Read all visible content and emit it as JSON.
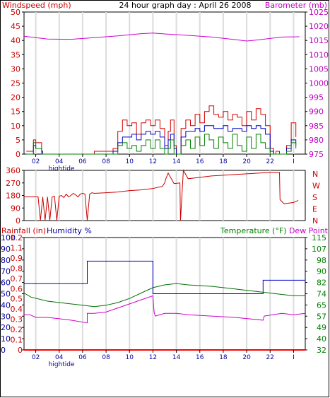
{
  "chart_data": [
    {
      "type": "line",
      "title": "24 hour graph day : April 26 2008",
      "ylabel": "Windspeed (mph)",
      "y2label": "Barometer (mb)",
      "x_ticks": [
        "02",
        "04",
        "06",
        "08",
        "10",
        "12",
        "14",
        "16",
        "18",
        "20",
        "22",
        "I"
      ],
      "x_marker": "hightide",
      "ylim": [
        0,
        50
      ],
      "y_ticks": [
        "0",
        "5",
        "10",
        "15",
        "20",
        "25",
        "30",
        "35",
        "40",
        "45",
        "50"
      ],
      "y2lim": [
        975,
        1025
      ],
      "y2_ticks": [
        "975",
        "980",
        "985",
        "990",
        "995",
        "1000",
        "1005",
        "1010",
        "1015",
        "1020",
        "1025"
      ],
      "grid": true,
      "series": [
        {
          "color": "#d40000",
          "axis": "left",
          "x": [
            0.2,
            0.8,
            1.0,
            1.5,
            1.6,
            4.7,
            6.0,
            7.6,
            8.0,
            8.4,
            8.8,
            9.2,
            9.6,
            10.0,
            10.4,
            10.8,
            11.2,
            11.6,
            12.0,
            12.3,
            12.5,
            12.8,
            13.0,
            13.4,
            13.8,
            14.2,
            14.6,
            15.0,
            15.4,
            15.8,
            16.2,
            16.6,
            17.0,
            17.4,
            17.8,
            18.2,
            18.6,
            19.0,
            19.4,
            19.8,
            20.2,
            20.6,
            21.0,
            21.3,
            21.5,
            21.8,
            22.0,
            22.4,
            22.8,
            23.2
          ],
          "values": [
            1,
            5,
            4,
            1,
            0,
            0,
            1,
            2,
            8,
            12,
            10,
            11,
            7,
            11,
            12,
            10,
            12,
            9,
            3,
            8,
            12,
            3,
            0,
            9,
            12,
            10,
            14,
            11,
            15,
            17,
            14,
            13,
            15,
            12,
            14,
            13,
            10,
            15,
            12,
            16,
            14,
            10,
            2,
            0,
            1,
            0,
            0,
            3,
            11,
            6
          ]
        },
        {
          "color": "#0000c8",
          "axis": "left",
          "x": [
            0.2,
            0.8,
            1.0,
            1.5,
            1.6,
            4.7,
            6.0,
            7.6,
            8.0,
            8.4,
            8.8,
            9.2,
            9.6,
            10.0,
            10.4,
            10.8,
            11.2,
            11.6,
            12.0,
            12.3,
            12.5,
            12.8,
            13.0,
            13.4,
            13.8,
            14.2,
            14.6,
            15.0,
            15.4,
            15.8,
            16.2,
            16.6,
            17.0,
            17.4,
            17.8,
            18.2,
            18.6,
            19.0,
            19.4,
            19.8,
            20.2,
            20.6,
            21.0,
            21.3,
            21.5,
            21.8,
            22.0,
            22.4,
            22.8,
            23.2
          ],
          "values": [
            0,
            3,
            2,
            1,
            0,
            0,
            0,
            1,
            4,
            6,
            6,
            7,
            5,
            7,
            8,
            7,
            8,
            6,
            2,
            5,
            7,
            2,
            0,
            6,
            8,
            8,
            9,
            8,
            10,
            10,
            9,
            9,
            10,
            8,
            9,
            9,
            8,
            10,
            9,
            10,
            9,
            7,
            1,
            0,
            0,
            0,
            0,
            2,
            5,
            3
          ]
        },
        {
          "color": "#008000",
          "axis": "left",
          "x": [
            0.2,
            0.8,
            1.0,
            1.5,
            1.6,
            4.7,
            6.0,
            7.6,
            8.0,
            8.4,
            8.8,
            9.2,
            9.6,
            10.0,
            10.4,
            10.8,
            11.2,
            11.6,
            12.0,
            12.3,
            12.5,
            12.8,
            13.0,
            13.4,
            13.8,
            14.2,
            14.6,
            15.0,
            15.4,
            15.8,
            16.2,
            16.6,
            17.0,
            17.4,
            17.8,
            18.2,
            18.6,
            19.0,
            19.4,
            19.8,
            20.2,
            20.6,
            21.0,
            21.3,
            21.5,
            21.8,
            22.0,
            22.4,
            22.8,
            23.2
          ],
          "values": [
            0,
            4,
            2,
            0,
            0,
            0,
            0,
            0,
            3,
            4,
            2,
            3,
            1,
            3,
            5,
            2,
            5,
            2,
            0,
            2,
            5,
            0,
            0,
            3,
            5,
            2,
            6,
            3,
            7,
            5,
            2,
            6,
            4,
            2,
            7,
            3,
            1,
            6,
            2,
            7,
            4,
            2,
            0,
            0,
            0,
            0,
            0,
            1,
            4,
            2
          ]
        },
        {
          "color": "#d000d0",
          "axis": "right",
          "x": [
            0,
            2,
            4,
            6,
            8,
            10,
            11,
            12,
            14,
            16,
            18,
            19,
            20,
            22,
            23.5
          ],
          "values": [
            1016.5,
            1015.5,
            1015.4,
            1016.0,
            1016.6,
            1017.4,
            1017.6,
            1017.3,
            1016.8,
            1016.2,
            1015.3,
            1014.8,
            1015.2,
            1016.2,
            1016.3
          ]
        }
      ]
    },
    {
      "type": "line",
      "ylim": [
        0,
        360
      ],
      "y_ticks": [
        "0",
        "90",
        "180",
        "270",
        "360"
      ],
      "y2_ticks": [
        "N",
        "W",
        "S",
        "E",
        "N"
      ],
      "grid": true,
      "series": [
        {
          "color": "#cc0000",
          "x": [
            0,
            0.2,
            1.2,
            1.4,
            1.6,
            1.8,
            2.0,
            2.2,
            2.4,
            2.6,
            2.8,
            3.0,
            3.2,
            3.4,
            3.6,
            3.8,
            4.0,
            4.2,
            4.4,
            4.6,
            4.8,
            5.0,
            5.2,
            5.4,
            5.6,
            5.8,
            6.0,
            7.0,
            8.0,
            9.0,
            10.0,
            11.0,
            11.5,
            11.8,
            12.0,
            12.1,
            12.3,
            12.8,
            13.3,
            13.35,
            13.6,
            14.0,
            15.0,
            16.0,
            17.0,
            18.0,
            19.0,
            20.0,
            21.0,
            21.8,
            21.85,
            22.2,
            23.0,
            23.4
          ],
          "values": [
            170,
            170,
            170,
            0,
            170,
            0,
            170,
            0,
            170,
            175,
            0,
            175,
            180,
            165,
            190,
            170,
            180,
            195,
            185,
            170,
            190,
            195,
            190,
            0,
            190,
            200,
            195,
            200,
            205,
            215,
            220,
            230,
            240,
            245,
            270,
            300,
            340,
            265,
            270,
            0,
            360,
            300,
            310,
            320,
            325,
            330,
            335,
            340,
            345,
            345,
            150,
            120,
            130,
            145
          ]
        }
      ]
    },
    {
      "type": "line",
      "ylabel": "Rainfall (in)",
      "ylabel2": "Humidity %",
      "y2label": "Temperature (°F)",
      "y2label2": "Dew Point",
      "x_ticks": [
        "02",
        "04",
        "06",
        "08",
        "10",
        "12",
        "14",
        "16",
        "18",
        "20",
        "22",
        "I"
      ],
      "x_marker": "hightide",
      "ylim_humidity": [
        0,
        100
      ],
      "y_ticks_humidity": [
        "0",
        "10",
        "20",
        "30",
        "40",
        "50",
        "60",
        "70",
        "80",
        "90",
        "100"
      ],
      "ylim_rain": [
        0,
        1.2
      ],
      "y_ticks_rain": [
        "0",
        "0.1",
        "0.2",
        "0.3",
        "0.4",
        "0.5",
        "0.6",
        "0.7",
        "0.8",
        "0.9",
        "1.1",
        "1.2"
      ],
      "ylim_temp": [
        32,
        115
      ],
      "y_ticks_temp": [
        "32",
        "40",
        "49",
        "57",
        "65",
        "74",
        "82",
        "90",
        "98",
        "107",
        "115"
      ],
      "grid": true,
      "series": [
        {
          "name": "Humidity %",
          "color": "#0000c8",
          "axis": "humidity",
          "x": [
            0,
            5.4,
            5.4,
            11.0,
            11.0,
            20.4,
            20.4,
            24
          ],
          "values": [
            59,
            59,
            79,
            79,
            50,
            50,
            62,
            62
          ]
        },
        {
          "color": "#007000",
          "axis": "temp",
          "x": [
            0,
            0.6,
            2,
            4,
            5,
            6,
            7,
            8,
            9,
            10,
            11,
            12,
            13,
            14,
            16,
            18,
            20,
            21,
            22,
            23,
            24
          ],
          "values": [
            74,
            71,
            68,
            66,
            65,
            64,
            65,
            67,
            70,
            74,
            78,
            80,
            81,
            80,
            79,
            77,
            75,
            74,
            73,
            72,
            72
          ]
        },
        {
          "color": "#d000d0",
          "axis": "temp",
          "x": [
            0,
            0.5,
            1,
            2,
            3,
            4,
            5.4,
            5.4,
            6,
            7,
            8,
            9,
            10,
            11.0,
            11.1,
            11.2,
            12,
            13,
            14,
            16,
            18,
            20.4,
            20.5,
            22,
            23,
            24
          ],
          "values": [
            58,
            58,
            56,
            56,
            55,
            54,
            52,
            59,
            59,
            60,
            63,
            66,
            69,
            72,
            60,
            57,
            59,
            59,
            58,
            57,
            56,
            54,
            57,
            59,
            58,
            59
          ]
        },
        {
          "name": "Rainfall (in)",
          "color": "#ff0000",
          "axis": "rain",
          "x": [
            0,
            24
          ],
          "values": [
            0,
            0
          ]
        }
      ]
    }
  ]
}
